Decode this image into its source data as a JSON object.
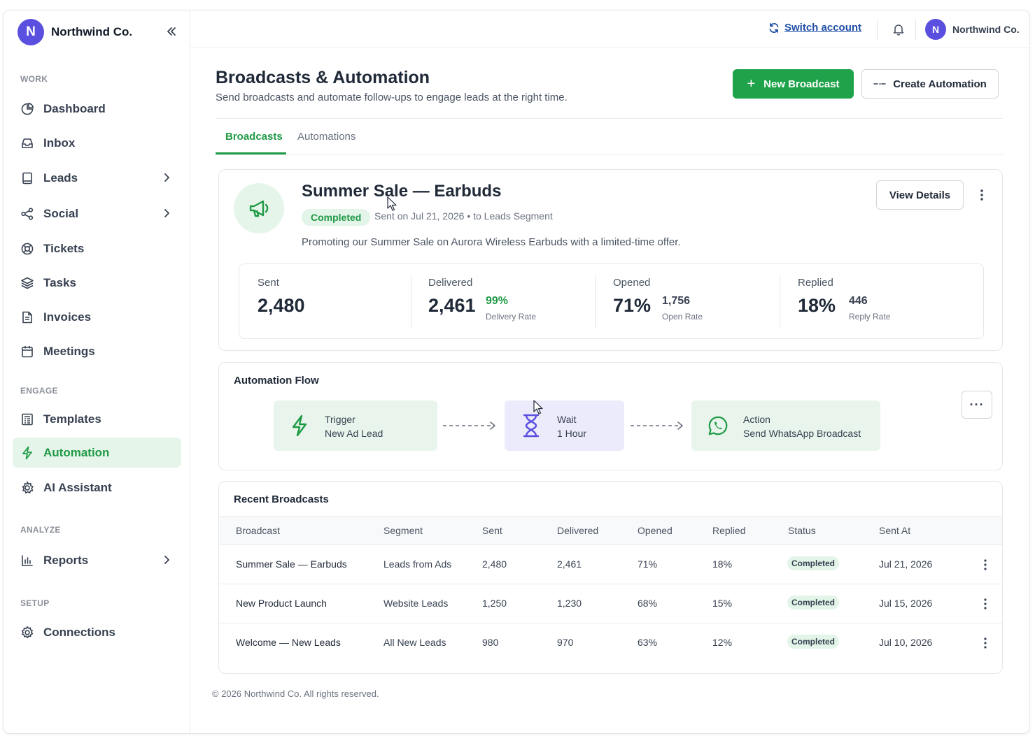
{
  "brand": {
    "initial": "N",
    "name": "Northwind Co."
  },
  "sidebar": {
    "sections": [
      {
        "label": "WORK"
      },
      {
        "label": "ENGAGE"
      },
      {
        "label": "ANALYZE"
      },
      {
        "label": "SETUP"
      }
    ],
    "items": [
      {
        "label": "Dashboard",
        "icon": "pie-chart-icon"
      },
      {
        "label": "Inbox",
        "icon": "inbox-icon"
      },
      {
        "label": "Leads",
        "icon": "book-icon",
        "has_children": true
      },
      {
        "label": "Social",
        "icon": "share-icon",
        "has_children": true
      },
      {
        "label": "Tickets",
        "icon": "lifebuoy-icon"
      },
      {
        "label": "Tasks",
        "icon": "layers-icon"
      },
      {
        "label": "Invoices",
        "icon": "document-icon"
      },
      {
        "label": "Meetings",
        "icon": "calendar-icon"
      },
      {
        "label": "Templates",
        "icon": "template-icon"
      },
      {
        "label": "Automation",
        "icon": "bolt-icon",
        "active": true
      },
      {
        "label": "AI Assistant",
        "icon": "ai-icon"
      },
      {
        "label": "Reports",
        "icon": "bar-chart-icon",
        "has_children": true
      },
      {
        "label": "Connections",
        "icon": "gear-icon"
      }
    ]
  },
  "topbar": {
    "switch_account": "Switch account",
    "user_initial": "N",
    "user_name": "Northwind Co."
  },
  "page": {
    "title": "Broadcasts & Automation",
    "subtitle": "Send broadcasts and automate follow-ups to engage leads at the right time.",
    "new_broadcast": "New Broadcast",
    "create_automation": "Create Automation",
    "tabs": [
      {
        "label": "Broadcasts",
        "active": true
      },
      {
        "label": "Automations",
        "active": false
      }
    ]
  },
  "broadcast": {
    "title": "Summer Sale — Earbuds",
    "status": "Completed",
    "meta": "Sent on Jul 21, 2026  •  to Leads Segment",
    "description": "Promoting our Summer Sale on Aurora Wireless Earbuds with a limited-time offer.",
    "view_details": "View Details",
    "stats": [
      {
        "label": "Sent",
        "value": "2,480"
      },
      {
        "label": "Delivered",
        "value": "2,461",
        "sub_value": "99%",
        "sub_caption": "Delivery Rate"
      },
      {
        "label": "Opened",
        "value": "71%",
        "sub_value": "1,756",
        "sub_caption": "Open Rate"
      },
      {
        "label": "Replied",
        "value": "18%",
        "sub_value": "446",
        "sub_caption": "Reply Rate"
      }
    ]
  },
  "flow": {
    "title": "Automation Flow",
    "nodes": [
      {
        "kind": "Trigger",
        "label": "New Ad Lead",
        "icon": "bolt-icon",
        "color": "#e9f5ec"
      },
      {
        "kind": "Wait",
        "label": "1 Hour",
        "icon": "hourglass-icon",
        "color": "#ecebfb"
      },
      {
        "kind": "Action",
        "label": "Send WhatsApp Broadcast",
        "icon": "whatsapp-icon",
        "color": "#e9f5ec"
      }
    ],
    "more": "···"
  },
  "recent": {
    "title": "Recent Broadcasts",
    "columns": [
      "Broadcast",
      "Segment",
      "Sent",
      "Delivered",
      "Opened",
      "Replied",
      "Status",
      "Sent At"
    ],
    "rows": [
      [
        "Summer Sale — Earbuds",
        "Leads from Ads",
        "2,480",
        "2,461",
        "71%",
        "18%",
        "Completed",
        "Jul 21, 2026"
      ],
      [
        "New Product Launch",
        "Website Leads",
        "1,250",
        "1,230",
        "68%",
        "15%",
        "Completed",
        "Jul 15, 2026"
      ],
      [
        "Welcome — New Leads",
        "All New Leads",
        "980",
        "970",
        "63%",
        "12%",
        "Completed",
        "Jul 10, 2026"
      ]
    ]
  },
  "footer": "© 2026 Northwind Co. All rights reserved.",
  "colors": {
    "accent": "#1fa34a",
    "brand": "#5b4fe0",
    "link": "#1f4fa5"
  }
}
